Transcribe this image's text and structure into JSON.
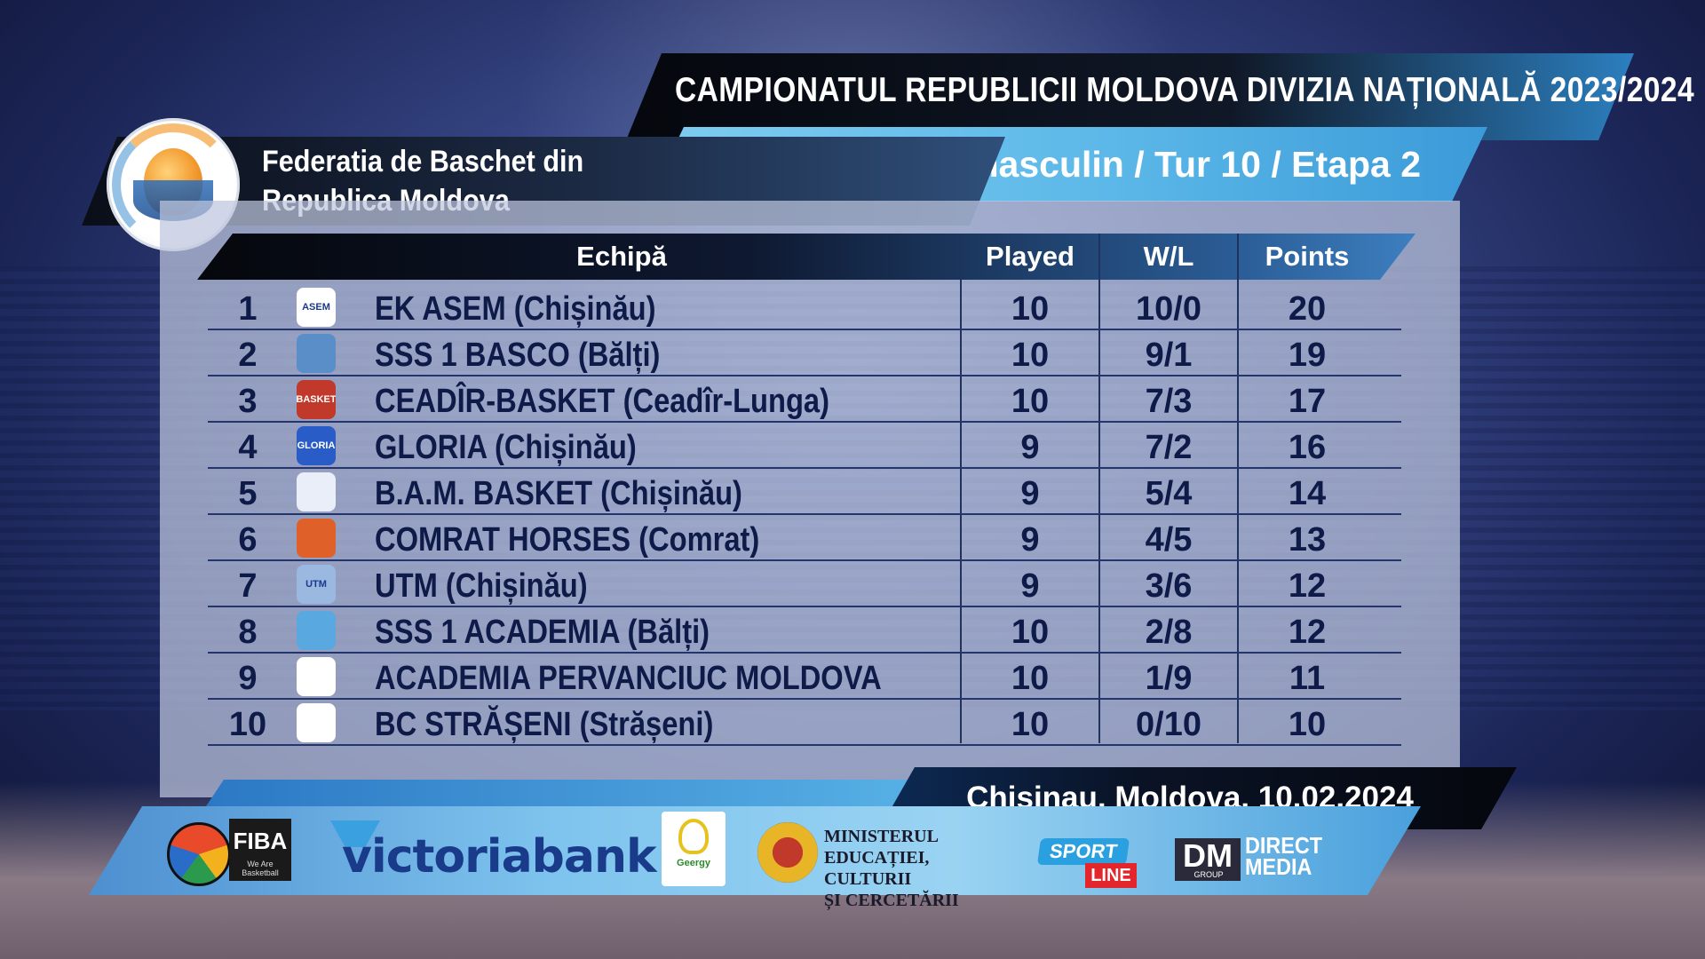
{
  "title": "CAMPIONATUL REPUBLICII MOLDOVA DIVIZIA NAȚIONALĂ 2023/2024",
  "subtitle": "masculin / Tur 10 / Etapa 2",
  "federation": {
    "line1": "Federatia de Baschet din",
    "line2": "Republica Moldova",
    "logo_icon": "basketball-federation-emblem"
  },
  "table": {
    "headers": {
      "team": "Echipă",
      "played": "Played",
      "wl": "W/L",
      "points": "Points"
    },
    "rows": [
      {
        "rank": "1",
        "team": "EK ASEM (Chișinău)",
        "played": "10",
        "wl": "10/0",
        "points": "20",
        "logo": "ASEM",
        "logo_color": "#ffffff",
        "logo_text_color": "#1a3a8a"
      },
      {
        "rank": "2",
        "team": "SSS 1 BASCO (Bălți)",
        "played": "10",
        "wl": "9/1",
        "points": "19",
        "logo": "",
        "logo_color": "#5a8ec8",
        "logo_text_color": "#ffffff"
      },
      {
        "rank": "3",
        "team": "CEADÎR-BASKET (Ceadîr-Lunga)",
        "played": "10",
        "wl": "7/3",
        "points": "17",
        "logo": "BASKET",
        "logo_color": "#c0392b",
        "logo_text_color": "#ffffff"
      },
      {
        "rank": "4",
        "team": "GLORIA (Chișinău)",
        "played": "9",
        "wl": "7/2",
        "points": "16",
        "logo": "GLORIA",
        "logo_color": "#2a5cc8",
        "logo_text_color": "#ffffff"
      },
      {
        "rank": "5",
        "team": "B.A.M. BASKET (Chișinău)",
        "played": "9",
        "wl": "5/4",
        "points": "14",
        "logo": "",
        "logo_color": "#e9eef8",
        "logo_text_color": "#2a4a9a"
      },
      {
        "rank": "6",
        "team": "COMRAT HORSES (Comrat)",
        "played": "9",
        "wl": "4/5",
        "points": "13",
        "logo": "",
        "logo_color": "#e0602a",
        "logo_text_color": "#ffffff"
      },
      {
        "rank": "7",
        "team": "UTM (Chișinău)",
        "played": "9",
        "wl": "3/6",
        "points": "12",
        "logo": "UTM",
        "logo_color": "#9ab8e0",
        "logo_text_color": "#1a3a8a"
      },
      {
        "rank": "8",
        "team": "SSS 1 ACADEMIA (Bălți)",
        "played": "10",
        "wl": "2/8",
        "points": "12",
        "logo": "",
        "logo_color": "#5aa8e0",
        "logo_text_color": "#ffffff"
      },
      {
        "rank": "9",
        "team": "ACADEMIA PERVANCIUC MOLDOVA",
        "played": "10",
        "wl": "1/9",
        "points": "11",
        "logo": "",
        "logo_color": "#ffffff",
        "logo_text_color": "#1a3a8a"
      },
      {
        "rank": "10",
        "team": "BC STRĂȘENI (Strășeni)",
        "played": "10",
        "wl": "0/10",
        "points": "10",
        "logo": "",
        "logo_color": "#ffffff",
        "logo_text_color": "#2a6ac8"
      }
    ]
  },
  "location_date": "Chisinau, Moldova, 10.02.2024",
  "sponsors": {
    "fiba": "FIBA",
    "fiba_sub": "We Are Basketball",
    "victoriabank": "victoriabank",
    "geergy": "Geergy",
    "ministry": [
      "MINISTERUL",
      "EDUCAȚIEI, CULTURII",
      "ȘI CERCETĂRII"
    ],
    "sport": "SPORT",
    "line": "LINE",
    "dm": "DM",
    "dm_group": "GROUP",
    "direct": "DIRECT",
    "media": "MEDIA"
  },
  "colors": {
    "accent_blue": "#5cb8e8",
    "dark": "#05070d",
    "text_navy": "#0e1a47"
  }
}
